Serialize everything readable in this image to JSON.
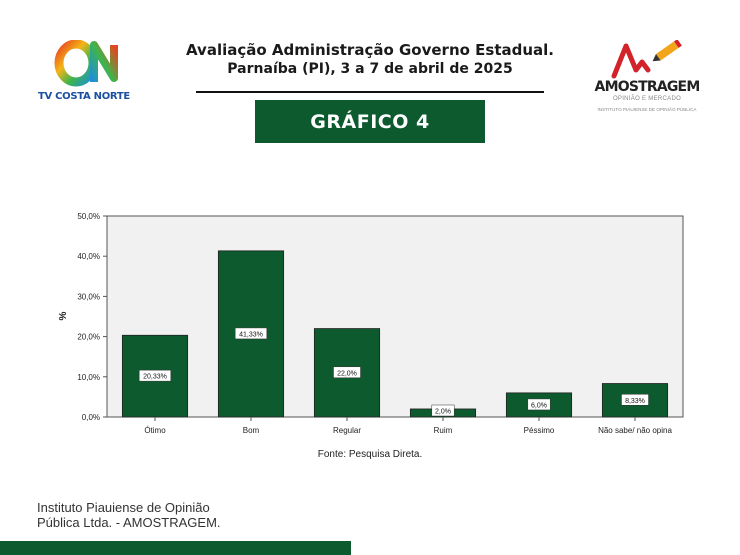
{
  "header": {
    "title": "Avaliação Administração Governo Estadual.",
    "subtitle": "Parnaíba (PI), 3 a 7 de abril de 2025",
    "badge": "GRÁFICO 4"
  },
  "logos": {
    "left_mark": "ON",
    "left_label": "TV COSTA NORTE",
    "right_name": "AMOSTRAGEM",
    "right_sub": "OPINIÃO E MERCADO",
    "right_inst": "INSTITUTO PIAUIENSE DE OPINIÃO PÚBLICA"
  },
  "colors": {
    "bar": "#0c5a2e",
    "plot_bg": "#f1f1f1",
    "brand_green": "#0c5a2e"
  },
  "chart_data": {
    "type": "bar",
    "categories": [
      "Ótimo",
      "Bom",
      "Regular",
      "Ruim",
      "Péssimo",
      "Não sabe/ não opina"
    ],
    "values": [
      20.33,
      41.33,
      22.0,
      2.0,
      6.0,
      8.33
    ],
    "data_labels": [
      "20,33%",
      "41,33%",
      "22,0%",
      "2,0%",
      "6,0%",
      "8,33%"
    ],
    "ylabel": "%",
    "xlabel": "",
    "ylim": [
      0,
      50
    ],
    "yticks": [
      0,
      10,
      20,
      30,
      40,
      50
    ],
    "ytick_labels": [
      "0,0%",
      "10,0%",
      "20,0%",
      "30,0%",
      "40,0%",
      "50,0%"
    ],
    "grid": false,
    "source": "Fonte: Pesquisa Direta."
  },
  "footer": {
    "line1": "Instituto Piauiense de Opinião",
    "line2": "Pública Ltda. - AMOSTRAGEM."
  }
}
